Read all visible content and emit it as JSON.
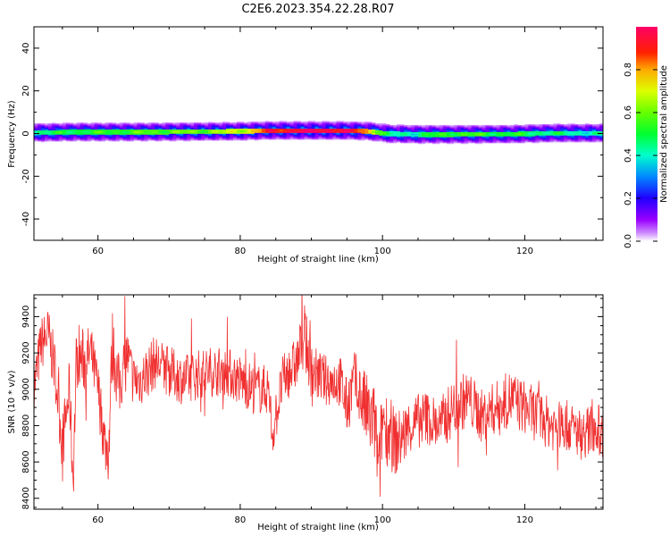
{
  "figure_title": "C2E6.2023.354.22.28.R07",
  "chart_data": [
    {
      "type": "heatmap",
      "xlabel": "Height of straight line (km)",
      "ylabel": "Frequency (Hz)",
      "xlim": [
        51,
        131
      ],
      "ylim": [
        -50,
        50
      ],
      "xticks": [
        60,
        80,
        100,
        120
      ],
      "yticks": [
        -40,
        -20,
        0,
        20,
        40
      ],
      "colorbar": {
        "label": "Normalized spectral amplitude",
        "range": [
          0,
          1
        ],
        "ticks": [
          0.0,
          0.2,
          0.4,
          0.6,
          0.8
        ],
        "tick_labels": [
          "0.0",
          "0.2",
          "0.4",
          "0.6",
          "0.8"
        ],
        "colormap": "gist_rainbow"
      },
      "ridge": {
        "height_km": [
          51,
          57,
          65,
          75,
          81,
          84,
          90,
          95,
          98,
          101,
          105,
          110,
          118,
          124,
          131
        ],
        "center_freq_hz": [
          0.5,
          0.8,
          0.8,
          1.0,
          1.2,
          1.5,
          1.5,
          1.5,
          1.2,
          0.0,
          -0.3,
          -0.3,
          -0.2,
          0.3,
          0.3
        ],
        "peak_amplitude": [
          0.45,
          0.5,
          0.55,
          0.6,
          0.7,
          0.9,
          1.0,
          0.95,
          0.8,
          0.4,
          0.45,
          0.55,
          0.5,
          0.45,
          0.4
        ]
      }
    },
    {
      "type": "line",
      "xlabel": "Height of straight line (km)",
      "ylabel": "SNR (10 * v/v)",
      "xlim": [
        51,
        131
      ],
      "ylim": [
        8340,
        9520
      ],
      "xticks": [
        60,
        80,
        100,
        120
      ],
      "yticks": [
        8400,
        8600,
        8800,
        9000,
        9200,
        9400
      ],
      "series": [
        {
          "color": "#f03030",
          "x": [
            51,
            52,
            53,
            54,
            55,
            56,
            56.5,
            57,
            58,
            59,
            60,
            61,
            61.5,
            62,
            63,
            64,
            65,
            66,
            67,
            68,
            70,
            72,
            74,
            76,
            78,
            80,
            82,
            84,
            84.5,
            86,
            88,
            89,
            90,
            92,
            94,
            95,
            96,
            97,
            98,
            99,
            99.5,
            100,
            101,
            102,
            104,
            106,
            108,
            110,
            112,
            114,
            116,
            118,
            120,
            122,
            124,
            126,
            128,
            130,
            131
          ],
          "y": [
            9000,
            9250,
            9300,
            9100,
            8700,
            9000,
            8500,
            9200,
            9150,
            9200,
            9000,
            8700,
            8650,
            9250,
            9000,
            9200,
            9050,
            9050,
            9100,
            9150,
            9100,
            9050,
            9080,
            9100,
            9100,
            9050,
            9000,
            9000,
            8750,
            9050,
            9150,
            9300,
            9100,
            9050,
            9050,
            8900,
            9050,
            8950,
            8850,
            8800,
            8500,
            8850,
            8750,
            8700,
            8800,
            8850,
            8800,
            8900,
            8950,
            8850,
            8900,
            8950,
            8900,
            8850,
            8800,
            8800,
            8750,
            8800,
            8750
          ],
          "envelope_amplitude": [
            150,
            150,
            160,
            160,
            170,
            170,
            180,
            200,
            180,
            160,
            160,
            170,
            170,
            200,
            180,
            160,
            150,
            150,
            150,
            150,
            140,
            140,
            140,
            140,
            140,
            140,
            140,
            140,
            140,
            140,
            150,
            180,
            150,
            140,
            150,
            160,
            170,
            200,
            220,
            230,
            250,
            220,
            200,
            180,
            160,
            150,
            150,
            160,
            160,
            150,
            150,
            160,
            150,
            150,
            140,
            140,
            140,
            140,
            140
          ]
        }
      ]
    }
  ]
}
